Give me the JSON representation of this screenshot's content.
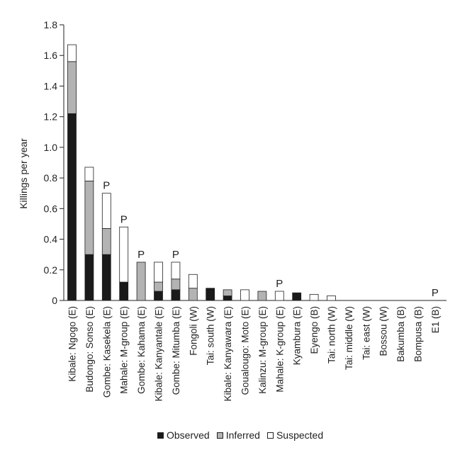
{
  "chart_data": {
    "type": "bar",
    "stacked": true,
    "ylabel": "Killings per year",
    "ylim": [
      0,
      1.8
    ],
    "yticks": [
      "0",
      "0.2",
      "0.4",
      "0.6",
      "0.8",
      "1.0",
      "1.2",
      "1.4",
      "1.6",
      "1.8"
    ],
    "categories": [
      "Kibale: Ngogo (E)",
      "Budongo: Sonso (E)",
      "Gombe: Kasekela (E)",
      "Mahale: M-group (E)",
      "Gombe: Kahama (E)",
      "Kibale: Kanyantale (E)",
      "Gombe: Mitumba (E)",
      "Fongoli (W)",
      "Tai: south (W)",
      "Kibale: Kanyawara (E)",
      "Goualougo: Moto (E)",
      "Kalinzu: M-group (E)",
      "Mahale: K-group (E)",
      "Kyambura (E)",
      "Eyengo (B)",
      "Tai: north (W)",
      "Tai: middle (W)",
      "Tai: east (W)",
      "Bossou (W)",
      "Bakumba (B)",
      "Bompusa (B)",
      "E1 (B)"
    ],
    "series": [
      {
        "name": "Observed",
        "color": "#1a1a1a",
        "values": [
          1.22,
          0.3,
          0.3,
          0.12,
          0,
          0.06,
          0.07,
          0,
          0.08,
          0.03,
          0,
          0,
          0,
          0.05,
          0,
          0,
          0,
          0,
          0,
          0,
          0,
          0
        ]
      },
      {
        "name": "Inferred",
        "color": "#b3b3b3",
        "values": [
          0.34,
          0.48,
          0.17,
          0,
          0.25,
          0.06,
          0.07,
          0.08,
          0,
          0.04,
          0,
          0.06,
          0,
          0,
          0,
          0,
          0,
          0,
          0,
          0,
          0,
          0
        ]
      },
      {
        "name": "Suspected",
        "color": "#ffffff",
        "values": [
          0.11,
          0.09,
          0.23,
          0.36,
          0,
          0.13,
          0.11,
          0.09,
          0,
          0,
          0.07,
          0,
          0.06,
          0,
          0.04,
          0.03,
          0,
          0,
          0,
          0,
          0,
          0
        ]
      }
    ],
    "annotations": [
      {
        "category_index": 2,
        "text": "P"
      },
      {
        "category_index": 3,
        "text": "P"
      },
      {
        "category_index": 4,
        "text": "P"
      },
      {
        "category_index": 6,
        "text": "P"
      },
      {
        "category_index": 12,
        "text": "P"
      },
      {
        "category_index": 21,
        "text": "P"
      }
    ],
    "legend_position": "bottom",
    "grid": false
  }
}
